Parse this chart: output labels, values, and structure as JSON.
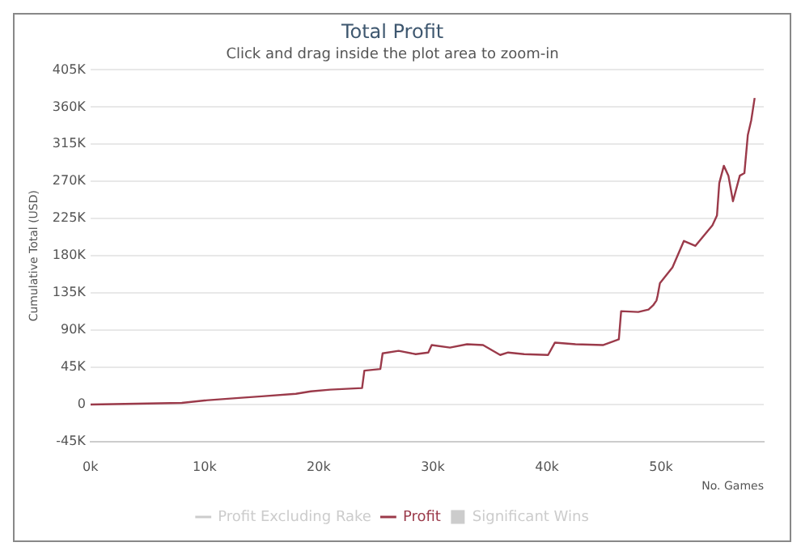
{
  "chart_data": {
    "type": "line",
    "title": "Total Profit",
    "subtitle": "Click and drag inside the plot area to zoom-in",
    "xlabel": "No. Games",
    "ylabel": "Cumulative Total (USD)",
    "xlim": [
      0,
      59000
    ],
    "xticks": [
      {
        "value": 0,
        "label": "0k"
      },
      {
        "value": 10000,
        "label": "10k"
      },
      {
        "value": 20000,
        "label": "20k"
      },
      {
        "value": 30000,
        "label": "30k"
      },
      {
        "value": 40000,
        "label": "40k"
      },
      {
        "value": 50000,
        "label": "50k"
      }
    ],
    "ylim": [
      -45000,
      405000
    ],
    "yticks": [
      {
        "value": -45000,
        "label": "-45K"
      },
      0,
      {
        "value": 45000,
        "label": "45K"
      },
      {
        "value": 90000,
        "label": "90K"
      },
      {
        "value": 135000,
        "label": "135K"
      },
      {
        "value": 180000,
        "label": "180K"
      },
      {
        "value": 225000,
        "label": "225K"
      },
      {
        "value": 270000,
        "label": "270K"
      },
      {
        "value": 315000,
        "label": "315K"
      },
      {
        "value": 360000,
        "label": "360K"
      },
      {
        "value": 405000,
        "label": "405K"
      }
    ],
    "grid": "y",
    "legend": "bottom",
    "series": [
      {
        "name": "Profit Excluding Rake",
        "type": "line",
        "color": "#cccccc"
      },
      {
        "name": "Profit",
        "color": "#9b3a4a",
        "x": [
          0,
          4000,
          8000,
          10000,
          13000,
          15000,
          18000,
          19300,
          21000,
          23800,
          24000,
          25400,
          25600,
          27000,
          28500,
          29600,
          29900,
          31500,
          33000,
          34400,
          35900,
          36600,
          38000,
          40100,
          40700,
          42500,
          44900,
          46300,
          46500,
          48000,
          48900,
          49300,
          49600,
          49700,
          49900,
          51000,
          52000,
          53000,
          54500,
          54900,
          55100,
          55500,
          55900,
          56300,
          56900,
          57300,
          57600,
          57900,
          58200
        ],
        "values": [
          0,
          1000,
          2000,
          5000,
          8000,
          10000,
          13000,
          16000,
          18000,
          20000,
          41000,
          43000,
          62000,
          65000,
          61000,
          63000,
          72000,
          69000,
          73000,
          72000,
          60000,
          63000,
          61000,
          60000,
          75000,
          73000,
          72000,
          79000,
          113000,
          112000,
          115000,
          120000,
          126000,
          132000,
          147000,
          166000,
          198000,
          192000,
          217000,
          229000,
          268000,
          289000,
          277000,
          246000,
          277000,
          280000,
          326000,
          344000,
          371000
        ]
      },
      {
        "name": "Significant Wins",
        "type": "bar",
        "color": "#cccccc"
      }
    ]
  }
}
